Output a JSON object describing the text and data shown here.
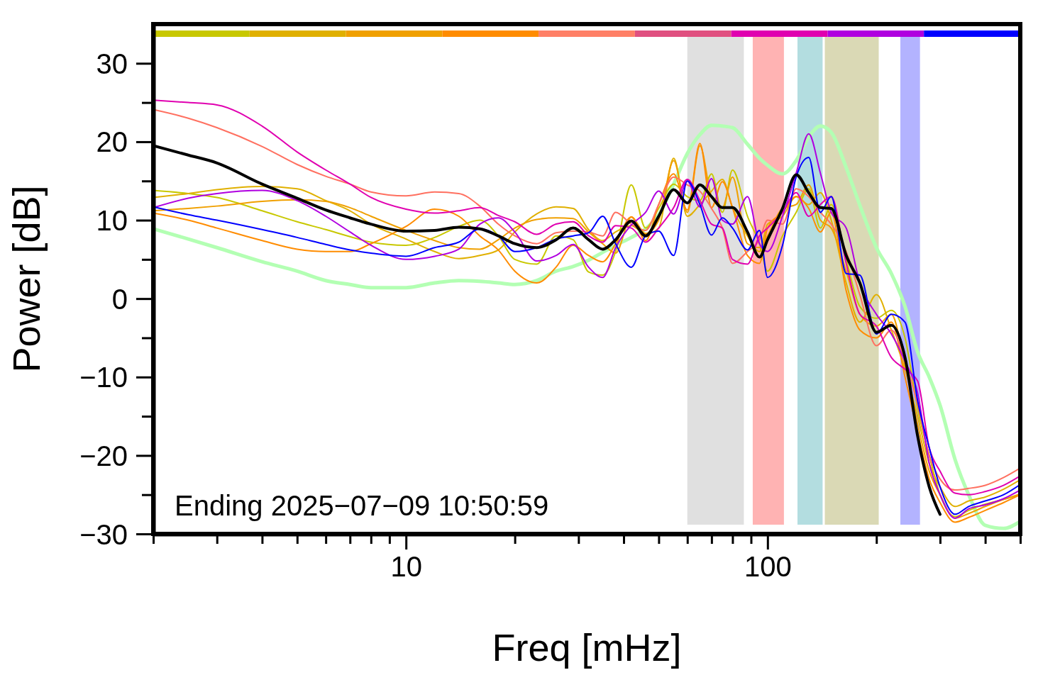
{
  "chart_data": {
    "type": "line",
    "xlabel": "Freq [mHz]",
    "ylabel": "Power [dB]",
    "log": "x",
    "xlim": [
      2,
      500
    ],
    "ylim": [
      -30,
      35
    ],
    "xticks": [
      {
        "value": 2,
        "label": null
      },
      {
        "value": 3,
        "label": null
      },
      {
        "value": 4,
        "label": null
      },
      {
        "value": 5,
        "label": null
      },
      {
        "value": 6,
        "label": null
      },
      {
        "value": 7,
        "label": null
      },
      {
        "value": 8,
        "label": null
      },
      {
        "value": 9,
        "label": null
      },
      10,
      {
        "value": 20,
        "label": null
      },
      {
        "value": 30,
        "label": null
      },
      {
        "value": 40,
        "label": null
      },
      {
        "value": 50,
        "label": null
      },
      {
        "value": 60,
        "label": null
      },
      {
        "value": 70,
        "label": null
      },
      {
        "value": 80,
        "label": null
      },
      {
        "value": 90,
        "label": null
      },
      100,
      {
        "value": 200,
        "label": null
      },
      {
        "value": 300,
        "label": null
      },
      {
        "value": 400,
        "label": null
      },
      {
        "value": 500,
        "label": null
      }
    ],
    "yticks": [
      {
        "value": -30,
        "label": "−30"
      },
      {
        "value": -25,
        "label": null
      },
      {
        "value": -20,
        "label": "−20"
      },
      {
        "value": -15,
        "label": null
      },
      {
        "value": -10,
        "label": "−10"
      },
      {
        "value": -5,
        "label": null
      },
      0,
      {
        "value": 5,
        "label": null
      },
      10,
      {
        "value": 15,
        "label": null
      },
      20,
      {
        "value": 25,
        "label": null
      },
      30
    ],
    "x": [
      2,
      2.5,
      3,
      4,
      5,
      6,
      7,
      8,
      10,
      12,
      14,
      16,
      18,
      20,
      23,
      26,
      29,
      32,
      35,
      38,
      42,
      46,
      50,
      55,
      60,
      65,
      70,
      75,
      80,
      88,
      95,
      100,
      110,
      120,
      130,
      140,
      150,
      165,
      180,
      200,
      220,
      240,
      260,
      280,
      300,
      330,
      360,
      400,
      450,
      500
    ],
    "bands": [
      {
        "axis": "x",
        "from": 60,
        "to": 86,
        "color": "#e0e0e0"
      },
      {
        "axis": "x",
        "from": 91,
        "to": 111,
        "color": "#ffb3b3"
      },
      {
        "axis": "x",
        "from": 121,
        "to": 142,
        "color": "#b3dde0"
      },
      {
        "axis": "x",
        "from": 144,
        "to": 203,
        "color": "#dad9b5"
      },
      {
        "axis": "x",
        "from": 233,
        "to": 264,
        "color": "#b3b3ff"
      }
    ],
    "series": [
      {
        "color": "#b3ffb3",
        "values": [
          8.9,
          7.6,
          6.5,
          4.7,
          3.5,
          2.3,
          1.8,
          1.4,
          1.4,
          2.0,
          2.3,
          2.2,
          2.0,
          1.8,
          2.3,
          3.5,
          4.1,
          4.9,
          5.9,
          6.8,
          7.8,
          8.9,
          10.7,
          14.6,
          18.5,
          20.9,
          22.1,
          22,
          21.8,
          19.7,
          17.9,
          17.0,
          15.9,
          17.6,
          20.6,
          22,
          21.2,
          16.7,
          11.9,
          6.5,
          3.2,
          -1,
          -6.8,
          -10,
          -13.6,
          -20.5,
          -25,
          -28.9,
          -29.3,
          -28.4
        ]
      },
      {
        "color": "#c8c800",
        "values": [
          13.8,
          13.4,
          12.9,
          11.2,
          9.8,
          8.8,
          7.9,
          7.2,
          6.8,
          7.8,
          9.2,
          10.0,
          8.0,
          5.0,
          4.4,
          8.0,
          7.5,
          3.4,
          3.0,
          6.0,
          14.5,
          9.0,
          11.5,
          14.6,
          13.0,
          12.5,
          15.9,
          11.0,
          16.4,
          10.5,
          7.0,
          3.5,
          8.0,
          11.0,
          14.0,
          9.0,
          12.0,
          5.0,
          -1.0,
          -2.5,
          -1.5,
          -5.0,
          -14.0,
          -20,
          -25,
          -27.8,
          -27,
          -26.2,
          -25.6,
          -25.0
        ]
      },
      {
        "color": "#e0b000",
        "values": [
          12.9,
          13.4,
          13.9,
          14.3,
          14.0,
          12.5,
          11.2,
          9.5,
          7.6,
          6.0,
          5.1,
          5.5,
          6.2,
          8.5,
          10.8,
          11.7,
          11.5,
          8.8,
          7.4,
          8.5,
          9.3,
          8.2,
          9.0,
          17.9,
          10.5,
          12.0,
          13.7,
          15.2,
          11.6,
          8.0,
          6.0,
          9.5,
          10.5,
          13.0,
          12.0,
          13.5,
          10.0,
          2.0,
          -3.0,
          0.5,
          -4.0,
          -9.0,
          -15.0,
          -21,
          -24,
          -26.5,
          -25.8,
          -25.3,
          -24.3,
          -23.1
        ]
      },
      {
        "color": "#f0a000",
        "values": [
          11.2,
          11.5,
          11.8,
          12.4,
          12.6,
          12.4,
          11.6,
          10.5,
          8.7,
          7.4,
          6.5,
          6.3,
          7.5,
          9.0,
          10.1,
          10.3,
          10.2,
          8.5,
          7.0,
          5.8,
          10.4,
          8.3,
          10.0,
          17.6,
          11.0,
          19.5,
          13.0,
          11.6,
          15.5,
          7.0,
          6.5,
          8.0,
          11.5,
          12.0,
          14.5,
          10.0,
          9.0,
          3.5,
          -2.0,
          -3.5,
          -2.0,
          -8.5,
          -16.0,
          -22,
          -25,
          -28,
          -27.4,
          -26.5,
          -25.6,
          -24.9
        ]
      },
      {
        "color": "#ff8c00",
        "values": [
          10.9,
          10.0,
          9.0,
          7.4,
          6.3,
          6.0,
          6.0,
          7.0,
          9.2,
          11.4,
          10.5,
          8.0,
          6.2,
          3.5,
          2.0,
          4.0,
          6.8,
          5.5,
          4.7,
          7.0,
          10.4,
          7.4,
          12.0,
          15.9,
          11.3,
          19.8,
          11.6,
          14.9,
          11.6,
          5.5,
          4.5,
          9.0,
          11.0,
          13.0,
          11.5,
          8.5,
          11.0,
          1.0,
          -4.0,
          -5.0,
          -3.0,
          -10.0,
          -17.0,
          -23,
          -26,
          -28.5,
          -27.9,
          -27.0,
          -26.0,
          -25.0
        ]
      },
      {
        "color": "#ff7060",
        "values": [
          24.1,
          23.0,
          21.8,
          19.4,
          17.1,
          15.6,
          14.6,
          13.6,
          13.1,
          13.6,
          13.4,
          11.8,
          9.5,
          8.0,
          7.0,
          8.4,
          8.6,
          8.5,
          8.0,
          11.0,
          9.5,
          8.7,
          12.0,
          15.5,
          14.5,
          13.7,
          11.5,
          9.0,
          4.5,
          6.0,
          7.5,
          10.0,
          9.5,
          14.0,
          13.0,
          11.0,
          9.5,
          6.0,
          0.5,
          -6,
          -4,
          -8,
          -13.5,
          -20,
          -23,
          -24.4,
          -24.2,
          -23.8,
          -22.8,
          -21.6
        ]
      },
      {
        "color": "#e000b0",
        "values": [
          25.3,
          25.0,
          24.7,
          22.0,
          18.7,
          16.4,
          14.6,
          12.9,
          11.4,
          10.9,
          11.2,
          11.6,
          10.6,
          9.8,
          8.2,
          9.5,
          9.8,
          8.0,
          7.2,
          9.3,
          9.0,
          7.2,
          9.0,
          11.6,
          15.2,
          12.5,
          9.5,
          9.0,
          5.0,
          4.4,
          8.0,
          9.0,
          11.0,
          13.5,
          10.5,
          12.0,
          13.0,
          4.5,
          -2.0,
          -3.5,
          -7.5,
          -9.0,
          -10.5,
          -19,
          -22,
          -24.8,
          -25,
          -24.6,
          -23.8,
          -22.6
        ]
      },
      {
        "color": "#b000e0",
        "values": [
          11.6,
          12.8,
          13.4,
          13.8,
          12.5,
          10.5,
          8.5,
          6.8,
          5.0,
          5.4,
          6.3,
          9.5,
          10.3,
          8.5,
          4.8,
          5.5,
          6.9,
          4.0,
          2.7,
          6.5,
          9.4,
          11.0,
          13.7,
          10.8,
          15.0,
          11.7,
          15.3,
          10.0,
          9.5,
          13.0,
          7.0,
          6.0,
          10.5,
          16.0,
          21.0,
          16.0,
          11.0,
          9.0,
          2.0,
          -2.0,
          -4.5,
          -8.0,
          -12.0,
          -21,
          -25,
          -28,
          -26.8,
          -26.3,
          -25.5,
          -24.4
        ]
      },
      {
        "color": "#0000ff",
        "values": [
          11.7,
          10.7,
          10.0,
          8.8,
          7.8,
          6.9,
          6.2,
          5.8,
          5.4,
          6.5,
          7.2,
          8.9,
          8.0,
          6.0,
          6.5,
          7.6,
          8.0,
          8.4,
          10.5,
          7.0,
          4.0,
          8.0,
          8.6,
          5.5,
          15.0,
          12.0,
          8.1,
          10.3,
          9.0,
          6.2,
          8.7,
          2.7,
          6.8,
          15.5,
          18.0,
          11.0,
          13.0,
          3.2,
          3.0,
          -4.5,
          -2.0,
          -3.0,
          -13.0,
          -19,
          -24,
          -27.5,
          -26.5,
          -25.8,
          -25.0,
          -23.7
        ]
      },
      {
        "color": "#000000",
        "values": [
          19.5,
          18.3,
          17.3,
          14.6,
          12.8,
          11.3,
          10.3,
          9.5,
          8.6,
          8.7,
          9.1,
          8.9,
          8.0,
          7.0,
          6.5,
          7.5,
          9.0,
          7.5,
          6.3,
          7.5,
          9.9,
          8.0,
          10.5,
          13.9,
          12.2,
          14.5,
          13.0,
          11.6,
          11.6,
          8.5,
          5.3,
          7.5,
          11.5,
          15.8,
          13.5,
          11.6,
          11.5,
          5.5,
          2.0,
          -4.3,
          -3.4,
          -7.5,
          -17.5,
          -24,
          -27.5,
          null,
          null,
          null,
          null,
          null
        ]
      }
    ],
    "annotations": [
      "Ending 2025−07−09 10:50:59"
    ]
  }
}
